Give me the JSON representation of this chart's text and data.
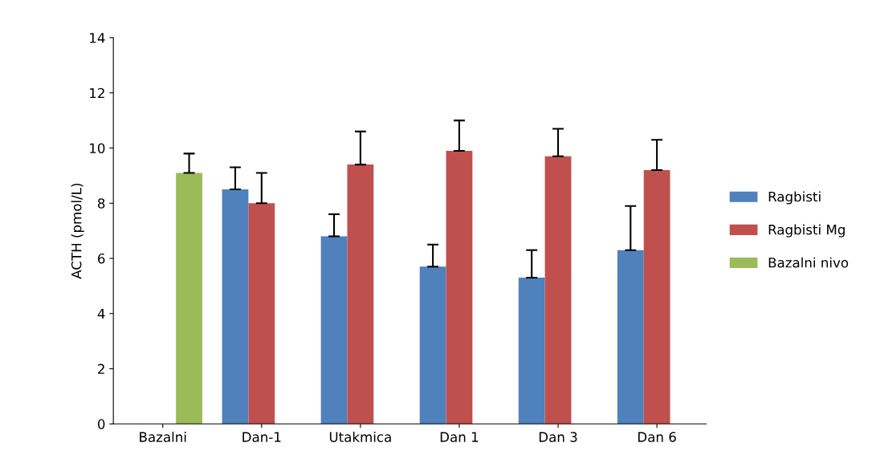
{
  "chart_data": {
    "type": "bar",
    "ylabel": "ACTH (pmol/L)",
    "categories": [
      "Bazalni",
      "Dan-1",
      "Utakmica",
      "Dan 1",
      "Dan 3",
      "Dan 6"
    ],
    "series": [
      {
        "name": "Ragbisti",
        "color": "#4f81bd",
        "values": [
          null,
          8.5,
          6.8,
          5.7,
          5.3,
          6.3
        ],
        "errors": [
          null,
          [
            8.5,
            9.3
          ],
          [
            6.8,
            7.6
          ],
          [
            5.7,
            6.5
          ],
          [
            5.3,
            6.3
          ],
          [
            6.3,
            7.9
          ]
        ]
      },
      {
        "name": "Ragbisti Mg",
        "color": "#c0504d",
        "values": [
          null,
          8.0,
          9.4,
          9.9,
          9.7,
          9.2
        ],
        "errors": [
          null,
          [
            8.0,
            9.1
          ],
          [
            9.4,
            10.6
          ],
          [
            9.9,
            11.0
          ],
          [
            9.7,
            10.7
          ],
          [
            9.2,
            10.3
          ]
        ]
      },
      {
        "name": "Bazalni nivo",
        "color": "#9bbb59",
        "values": [
          9.1,
          null,
          null,
          null,
          null,
          null
        ],
        "errors": [
          [
            9.1,
            9.8
          ],
          null,
          null,
          null,
          null,
          null
        ]
      }
    ],
    "ylim": [
      0,
      14
    ],
    "yticks": [
      0,
      2,
      4,
      6,
      8,
      10,
      12,
      14
    ],
    "grid": false,
    "legend": "right"
  }
}
